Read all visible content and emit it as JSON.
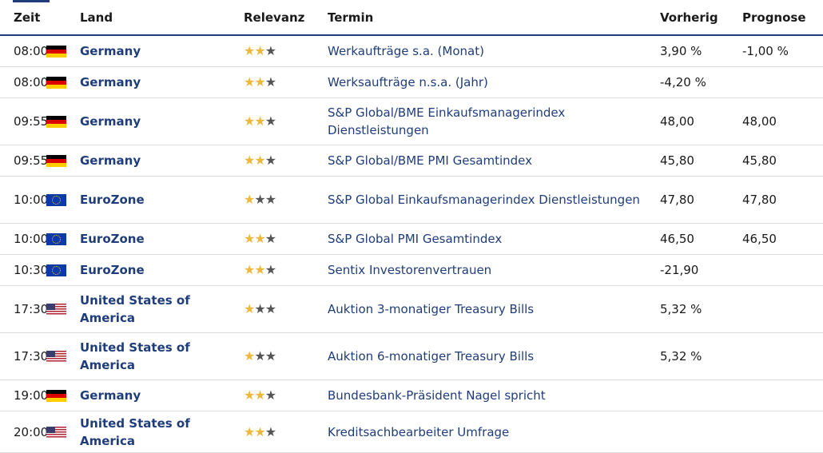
{
  "header": {
    "zeit": "Zeit",
    "land": "Land",
    "relevanz": "Relevanz",
    "termin": "Termin",
    "vorherig": "Vorherig",
    "prognose": "Prognose"
  },
  "rows": [
    {
      "time": "08:00",
      "flag": "germany-flag-icon",
      "country": "Germany",
      "stars": 2,
      "event": "Werkaufträge s.a. (Monat)",
      "previous": "3,90 %",
      "forecast": "-1,00 %"
    },
    {
      "time": "08:00",
      "flag": "germany-flag-icon",
      "country": "Germany",
      "stars": 2,
      "event": "Werksaufträge n.s.a. (Jahr)",
      "previous": "-4,20 %",
      "forecast": ""
    },
    {
      "time": "09:55",
      "flag": "germany-flag-icon",
      "country": "Germany",
      "stars": 2,
      "event": "S&P Global/BME Einkaufsmanagerindex Dienstleistungen",
      "previous": "48,00",
      "forecast": "48,00"
    },
    {
      "time": "09:55",
      "flag": "germany-flag-icon",
      "country": "Germany",
      "stars": 2,
      "event": "S&P Global/BME PMI Gesamtindex",
      "previous": "45,80",
      "forecast": "45,80"
    },
    {
      "time": "10:00",
      "flag": "eu-flag-icon",
      "country": "EuroZone",
      "stars": 1,
      "event": "S&P Global Einkaufsmanagerindex Dienstleistungen",
      "previous": "47,80",
      "forecast": "47,80"
    },
    {
      "time": "10:00",
      "flag": "eu-flag-icon",
      "country": "EuroZone",
      "stars": 2,
      "event": "S&P Global PMI Gesamtindex",
      "previous": "46,50",
      "forecast": "46,50"
    },
    {
      "time": "10:30",
      "flag": "eu-flag-icon",
      "country": "EuroZone",
      "stars": 2,
      "event": "Sentix Investorenvertrauen",
      "previous": "-21,90",
      "forecast": ""
    },
    {
      "time": "17:30",
      "flag": "us-flag-icon",
      "country": "United States of America",
      "stars": 1,
      "event": "Auktion 3-monatiger Treasury Bills",
      "previous": "5,32 %",
      "forecast": ""
    },
    {
      "time": "17:30",
      "flag": "us-flag-icon",
      "country": "United States of America",
      "stars": 1,
      "event": "Auktion 6-monatiger Treasury Bills",
      "previous": "5,32 %",
      "forecast": ""
    },
    {
      "time": "19:00",
      "flag": "germany-flag-icon",
      "country": "Germany",
      "stars": 2,
      "event": "Bundesbank-Präsident Nagel spricht",
      "previous": "",
      "forecast": ""
    },
    {
      "time": "20:00",
      "flag": "us-flag-icon",
      "country": "United States of America",
      "stars": 2,
      "event": "Kreditsachbearbeiter Umfrage",
      "previous": "",
      "forecast": ""
    }
  ],
  "colors": {
    "accent": "#1f3d7a",
    "star_on": "#f0b83a",
    "star_off": "#555555"
  }
}
